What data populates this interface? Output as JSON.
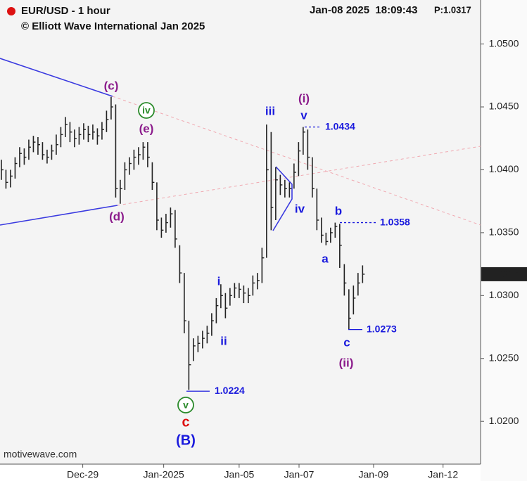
{
  "chart_data": {
    "type": "ohlc",
    "title": "EUR/USD - 1 hour",
    "subtitle": "© Elliott Wave International Jan 2025",
    "timestamp": "Jan-08 2025  18:09:43",
    "price_label": "P:1.0317",
    "footer": "motivewave.com",
    "color": "#222222",
    "xlim": [
      -0.3,
      104.8
    ],
    "xticks": [
      {
        "value": 17.8,
        "label": "Dec-29"
      },
      {
        "value": 35.5,
        "label": "Jan-2025"
      },
      {
        "value": 52,
        "label": "Jan-05"
      },
      {
        "value": 65.1,
        "label": "Jan-07"
      },
      {
        "value": 81.4,
        "label": "Jan-09"
      },
      {
        "value": 96.6,
        "label": "Jan-12"
      }
    ],
    "ylim": [
      1.0166,
      1.0535
    ],
    "yticks": [
      {
        "value": 1.02,
        "label": "1.0200"
      },
      {
        "value": 1.025,
        "label": "1.0250"
      },
      {
        "value": 1.03,
        "label": "1.0300"
      },
      {
        "value": 1.035,
        "label": "1.0350"
      },
      {
        "value": 1.04,
        "label": "1.0400"
      },
      {
        "value": 1.045,
        "label": "1.0450"
      },
      {
        "value": 1.05,
        "label": "1.0500"
      }
    ],
    "last_price": 1.0317,
    "high": [
      1.0408,
      1.04,
      1.04,
      1.041,
      1.0418,
      1.0417,
      1.0424,
      1.0427,
      1.0426,
      1.0422,
      1.0416,
      1.042,
      1.0428,
      1.0434,
      1.0442,
      1.0438,
      1.0432,
      1.0434,
      1.0437,
      1.0435,
      1.0436,
      1.0433,
      1.0438,
      1.0447,
      1.0458,
      1.0452,
      1.0392,
      1.0406,
      1.041,
      1.0416,
      1.0418,
      1.0422,
      1.0422,
      1.0406,
      1.039,
      1.0362,
      1.0365,
      1.037,
      1.0368,
      1.034,
      1.0318,
      1.028,
      1.0266,
      1.0268,
      1.0272,
      1.0276,
      1.0286,
      1.0298,
      1.0309,
      1.0302,
      1.0306,
      1.031,
      1.031,
      1.0308,
      1.0306,
      1.0316,
      1.0318,
      1.0338,
      1.0436,
      1.043,
      1.0402,
      1.0396,
      1.0392,
      1.039,
      1.0405,
      1.0422,
      1.0434,
      1.0432,
      1.041,
      1.0385,
      1.0362,
      1.035,
      1.0354,
      1.0358,
      1.0357,
      1.0325,
      1.0305,
      1.0308,
      1.0318,
      1.0324
    ],
    "low": [
      1.0392,
      1.0385,
      1.0386,
      1.0393,
      1.0402,
      1.0404,
      1.0408,
      1.0414,
      1.0412,
      1.0408,
      1.0405,
      1.0408,
      1.0412,
      1.0418,
      1.0426,
      1.0422,
      1.0418,
      1.042,
      1.0424,
      1.0422,
      1.0424,
      1.042,
      1.0424,
      1.043,
      1.044,
      1.0378,
      1.0373,
      1.0384,
      1.0396,
      1.04,
      1.0404,
      1.0408,
      1.0402,
      1.0384,
      1.0352,
      1.0346,
      1.035,
      1.0354,
      1.0338,
      1.031,
      1.027,
      1.0225,
      1.0248,
      1.0255,
      1.0258,
      1.0262,
      1.0268,
      1.0278,
      1.029,
      1.0282,
      1.0292,
      1.0298,
      1.0298,
      1.0294,
      1.0294,
      1.03,
      1.0305,
      1.031,
      1.033,
      1.0352,
      1.036,
      1.038,
      1.0378,
      1.0378,
      1.0385,
      1.0395,
      1.0412,
      1.04,
      1.0378,
      1.0352,
      1.0342,
      1.034,
      1.0342,
      1.0346,
      1.0322,
      1.03,
      1.0273,
      1.0285,
      1.03,
      1.031
    ],
    "close": [
      1.04,
      1.039,
      1.0395,
      1.0405,
      1.0413,
      1.041,
      1.0418,
      1.0422,
      1.042,
      1.0412,
      1.041,
      1.0415,
      1.042,
      1.0428,
      1.0436,
      1.043,
      1.0425,
      1.0428,
      1.0432,
      1.0428,
      1.043,
      1.0427,
      1.0432,
      1.044,
      1.045,
      1.0385,
      1.0385,
      1.04,
      1.0405,
      1.041,
      1.0412,
      1.0418,
      1.041,
      1.039,
      1.036,
      1.0352,
      1.0358,
      1.0365,
      1.0345,
      1.0318,
      1.028,
      1.0245,
      1.026,
      1.0262,
      1.0266,
      1.027,
      1.028,
      1.0292,
      1.03,
      1.029,
      1.03,
      1.0306,
      1.0305,
      1.0302,
      1.03,
      1.031,
      1.0312,
      1.033,
      1.04,
      1.037,
      1.0392,
      1.0388,
      1.0385,
      1.0385,
      1.0398,
      1.0415,
      1.043,
      1.041,
      1.0385,
      1.036,
      1.0348,
      1.0343,
      1.035,
      1.0355,
      1.034,
      1.031,
      1.0282,
      1.0298,
      1.031,
      1.0317
    ],
    "levels": [
      1.0434,
      1.0358,
      1.0273,
      1.0224
    ],
    "annotations": [
      {
        "text": "(c)",
        "color": "#8b1a8b"
      },
      {
        "text": "iv",
        "color": "#2a8a2a",
        "circled": true
      },
      {
        "text": "(e)",
        "color": "#8b1a8b"
      },
      {
        "text": "(d)",
        "color": "#8b1a8b"
      },
      {
        "text": "iii",
        "color": "#1a1add"
      },
      {
        "text": "(i)",
        "color": "#8b1a8b"
      },
      {
        "text": "v",
        "color": "#1a1add"
      },
      {
        "text": "iv",
        "color": "#1a1add"
      },
      {
        "text": "b",
        "color": "#1a1add"
      },
      {
        "text": "a",
        "color": "#1a1add"
      },
      {
        "text": "i",
        "color": "#1a1add"
      },
      {
        "text": "ii",
        "color": "#1a1add"
      },
      {
        "text": "c",
        "color": "#1a1add"
      },
      {
        "text": "(ii)",
        "color": "#8b1a8b"
      },
      {
        "text": "v",
        "color": "#2a8a2a",
        "circled": true
      },
      {
        "text": "c",
        "color": "#dd1111"
      },
      {
        "text": "(B)",
        "color": "#1a1add"
      }
    ]
  }
}
